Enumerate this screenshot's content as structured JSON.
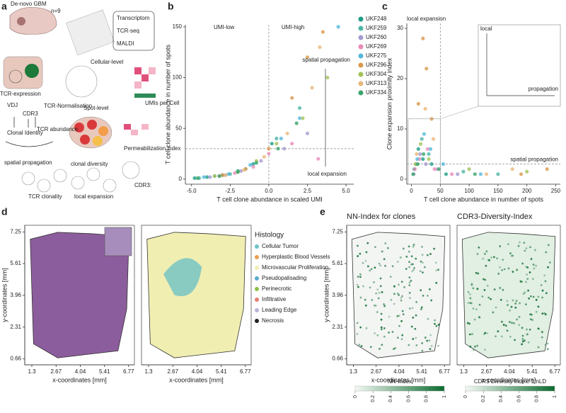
{
  "panel_labels": [
    "a",
    "b",
    "c",
    "d",
    "e"
  ],
  "diagram": {
    "title": "De-novo GBM",
    "n": "n=9",
    "assays": [
      "Transcriptom",
      "TCR-seq",
      "MALDI"
    ],
    "cellular": "Cellular-level",
    "tcr_expression": "TCR-expression",
    "vdj": "VDJ",
    "cdr3": "CDR3",
    "normalisation": "TCR-Normalisation",
    "spot": "Spot-level",
    "umis": "UMIs per Cell",
    "perm": "Permeabilization index",
    "clonal_identity": "Clonal Identity",
    "tcr_abundance": "TCR abundance",
    "clonal_diversity": "clonal diversity",
    "spatial_propagation": "spatial propagation",
    "cdr3_label": "CDR3:",
    "tcr_clonality": "TCR clonality",
    "local_expansion": "local expansion"
  },
  "chart_data": [
    {
      "type": "scatter",
      "xlabel": "T cell clone abundance in scaled UMI",
      "ylabel": "T cell clone abundance in number of spots",
      "annotations": [
        "UMI-low",
        "UMI-high",
        "spatial propagation",
        "local expansion"
      ],
      "xlim": [
        -5.4,
        5.5
      ],
      "ylim": [
        -5,
        152
      ],
      "xticks": [
        {
          "value": -5,
          "label": "-5.0"
        },
        {
          "value": -2.5,
          "label": "-2.5"
        },
        {
          "value": 0,
          "label": "0.0"
        },
        {
          "value": 2.5,
          "label": "2.5"
        },
        {
          "value": 5,
          "label": "5.0"
        }
      ],
      "yticks": [
        0,
        50,
        100,
        150
      ],
      "ref_lines": {
        "x": 0,
        "y": 30
      },
      "series": [
        {
          "name": "UKF248",
          "color": "#1f9e89",
          "x": [
            -4.8,
            -4,
            -3,
            -2,
            -1,
            0.2
          ],
          "values": [
            1,
            2,
            4,
            8,
            15,
            35
          ]
        },
        {
          "name": "UKF259",
          "color": "#4fb5a5",
          "x": [
            -4.5,
            -3.5,
            -2.5,
            -1.5,
            0.5,
            2
          ],
          "values": [
            1,
            3,
            5,
            10,
            40,
            70
          ]
        },
        {
          "name": "UKF260",
          "color": "#a59ad0",
          "x": [
            -3.8,
            -2.8,
            -1.8,
            -0.5,
            1,
            2.5
          ],
          "values": [
            2,
            4,
            8,
            18,
            30,
            45
          ]
        },
        {
          "name": "UKF269",
          "color": "#e98bb8",
          "x": [
            -3.2,
            -2.2,
            -1,
            0,
            1.5,
            3.2
          ],
          "values": [
            3,
            6,
            12,
            25,
            35,
            20
          ]
        },
        {
          "name": "UKF275",
          "color": "#55b8da",
          "x": [
            -4.2,
            -2.6,
            -1.2,
            0.8,
            2,
            4.5
          ],
          "values": [
            2,
            5,
            14,
            40,
            60,
            150
          ]
        },
        {
          "name": "UKF296",
          "color": "#d99a4e",
          "x": [
            -3,
            -1.5,
            0,
            1.5,
            2.5,
            3.5
          ],
          "values": [
            4,
            10,
            30,
            80,
            120,
            145
          ]
        },
        {
          "name": "UKF304",
          "color": "#a3c25a",
          "x": [
            -3.5,
            -2,
            -0.8,
            0.5,
            2.2,
            3.8
          ],
          "values": [
            3,
            7,
            18,
            35,
            60,
            100
          ]
        },
        {
          "name": "UKF313",
          "color": "#e8b87a",
          "x": [
            -2.8,
            -1.6,
            -0.3,
            1.2,
            2.8,
            3.3
          ],
          "values": [
            4,
            9,
            22,
            45,
            90,
            130
          ]
        },
        {
          "name": "UKF334",
          "color": "#3aa56a",
          "x": [
            -4.6,
            -3.2,
            -2,
            -0.8,
            0.6,
            1.8
          ],
          "values": [
            1,
            3,
            7,
            16,
            30,
            55
          ]
        }
      ]
    },
    {
      "type": "scatter",
      "xlabel": "T cell clone abundance in number of spots",
      "ylabel": "Clone expansion proximity index",
      "annotations": [
        "local expansion",
        "spatial propagation",
        "local",
        "propagation"
      ],
      "xlim": [
        -8,
        258
      ],
      "ylim": [
        -1,
        31
      ],
      "xticks": [
        0,
        50,
        100,
        150,
        200,
        250
      ],
      "yticks": [
        0,
        10,
        20,
        30
      ],
      "ref_lines": {
        "x": 50,
        "y": 3
      },
      "series": [
        {
          "name": "UKF248",
          "color": "#1f9e89",
          "x": [
            5,
            12,
            20,
            35,
            60
          ],
          "values": [
            2,
            6,
            4,
            3,
            1
          ]
        },
        {
          "name": "UKF259",
          "color": "#4fb5a5",
          "x": [
            8,
            18,
            30,
            90,
            150
          ],
          "values": [
            3,
            8,
            5,
            1.5,
            1
          ]
        },
        {
          "name": "UKF260",
          "color": "#a59ad0",
          "x": [
            4,
            15,
            25,
            45,
            80
          ],
          "values": [
            1,
            5,
            3,
            2,
            1
          ]
        },
        {
          "name": "UKF269",
          "color": "#e98bb8",
          "x": [
            6,
            14,
            28,
            40,
            70
          ],
          "values": [
            2,
            4,
            6,
            2,
            1
          ]
        },
        {
          "name": "UKF275",
          "color": "#55b8da",
          "x": [
            10,
            22,
            33,
            55,
            120
          ],
          "values": [
            4,
            9,
            6,
            3,
            1
          ]
        },
        {
          "name": "UKF296",
          "color": "#d99a4e",
          "x": [
            12,
            20,
            26,
            35,
            190,
            235
          ],
          "values": [
            15,
            28,
            22,
            12,
            1,
            2
          ]
        },
        {
          "name": "UKF304",
          "color": "#a3c25a",
          "x": [
            7,
            16,
            30,
            100,
            200
          ],
          "values": [
            3,
            7,
            4,
            2,
            1.5
          ]
        },
        {
          "name": "UKF313",
          "color": "#e8b87a",
          "x": [
            9,
            24,
            38,
            130,
            175
          ],
          "values": [
            5,
            14,
            8,
            1,
            2
          ]
        },
        {
          "name": "UKF334",
          "color": "#3aa56a",
          "x": [
            3,
            11,
            21,
            48,
            110
          ],
          "values": [
            1,
            3,
            5,
            2,
            1
          ]
        }
      ]
    },
    {
      "type": "spatial",
      "ylabel": "y-coordinates [mm]",
      "xlabel": "x-coordinates [mm]",
      "xlim": [
        0.9,
        7.1
      ],
      "ylim": [
        0.35,
        7.6
      ],
      "xticks": [
        1.3,
        2.67,
        4.04,
        5.41,
        6.77
      ],
      "yticks": [
        0.66,
        2.31,
        3.96,
        5.61,
        7.25
      ]
    },
    {
      "type": "spatial",
      "xlabel": "x-coordinates [mm]",
      "xlim": [
        0.9,
        7.1
      ],
      "ylim": [
        0.35,
        7.6
      ],
      "xticks": [
        1.3,
        2.67,
        4.04,
        5.41,
        6.77
      ],
      "legend_title": "Histology",
      "legend": [
        {
          "name": "Cellular Tumor",
          "color": "#6fc2c4"
        },
        {
          "name": "Hyperplastic Blood Vessels",
          "color": "#e8a050"
        },
        {
          "name": "Microvascular Proliferation",
          "color": "#f1eeb2"
        },
        {
          "name": "Pseudopalisading",
          "color": "#5aa9cf"
        },
        {
          "name": "Perinecrotic",
          "color": "#8cc14a"
        },
        {
          "name": "Infiltrative",
          "color": "#e67f73"
        },
        {
          "name": "Leading Edge",
          "color": "#b7b3d6"
        },
        {
          "name": "Necrosis",
          "color": "#222222"
        }
      ]
    },
    {
      "type": "spatial",
      "title": "NN-Index for clones",
      "ylabel": "y-coordinates [mm]",
      "xlabel": "x-coordinates [mm]",
      "xlim": [
        0.9,
        7.1
      ],
      "ylim": [
        0.35,
        7.6
      ],
      "xticks": [
        1.3,
        2.67,
        4.04,
        5.41,
        6.77
      ],
      "yticks": [
        0.66,
        2.31,
        3.96,
        5.61,
        7.25
      ],
      "colorbar": {
        "label": "NN-Index",
        "ticks": [
          0,
          0.2,
          0.4,
          0.6,
          0.8,
          1
        ],
        "colors": [
          "#f4f9f4",
          "#0b6b2e"
        ]
      }
    },
    {
      "type": "spatial",
      "title": "CDR3-Diversity-Index",
      "xlabel": "x-coordinates [mm]",
      "xlim": [
        0.9,
        7.1
      ],
      "ylim": [
        0.35,
        7.6
      ],
      "xticks": [
        1.3,
        2.67,
        4.04,
        5.41,
        6.77
      ],
      "colorbar": {
        "label": "CDR3 Diversity Index: 1/nLD",
        "ticks": [
          0,
          0.2,
          0.4,
          0.6,
          0.8,
          1
        ],
        "colors": [
          "#f4f9f4",
          "#0b6b2e"
        ]
      }
    }
  ]
}
